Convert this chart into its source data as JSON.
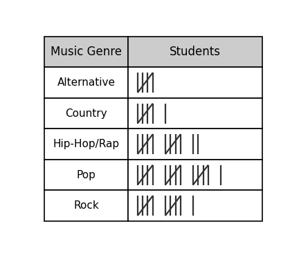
{
  "col1_header": "Music Genre",
  "col2_header": "Students",
  "rows": [
    {
      "genre": "Alternative",
      "count": 5
    },
    {
      "genre": "Country",
      "count": 6
    },
    {
      "genre": "Hip-Hop/Rap",
      "count": 12
    },
    {
      "genre": "Pop",
      "count": 16
    },
    {
      "genre": "Rock",
      "count": 11
    }
  ],
  "header_bg": "#cccccc",
  "cell_bg": "#ffffff",
  "line_color": "#000000",
  "text_color": "#000000",
  "tally_color": "#333333",
  "fig_width": 4.32,
  "fig_height": 3.69,
  "dpi": 100,
  "header_fontsize": 12,
  "cell_fontsize": 11,
  "tally_lw": 1.6,
  "border_lw": 1.2
}
